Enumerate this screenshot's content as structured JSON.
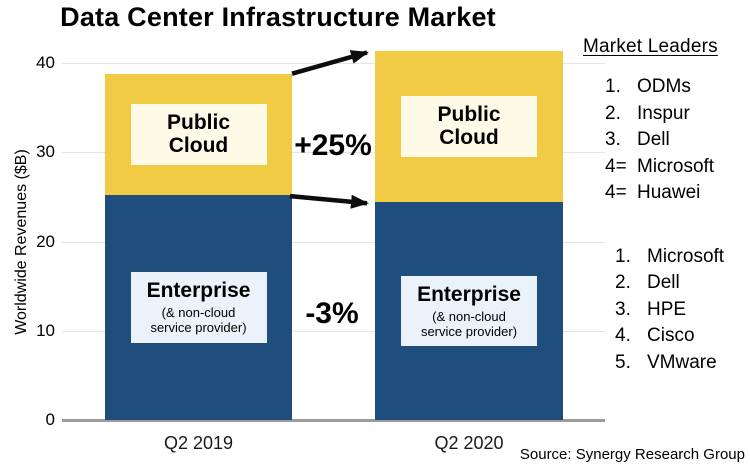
{
  "title": "Data Center Infrastructure Market",
  "chart_data": {
    "type": "bar",
    "stacked": true,
    "title": "Data Center Infrastructure Market",
    "categories": [
      "Q2 2019",
      "Q2 2020"
    ],
    "series": [
      {
        "name": "Enterprise",
        "sublabel": "(& non-cloud service provider)",
        "values": [
          25.2,
          24.4
        ],
        "color": "#1f4e7c",
        "label_bg": "#ebf2fa"
      },
      {
        "name": "Public Cloud",
        "sublabel": "",
        "values": [
          13.6,
          17.0
        ],
        "color": "#f2cb45",
        "label_bg": "#fdfae8"
      }
    ],
    "totals": [
      38.8,
      41.4
    ],
    "xlabel": "",
    "ylabel": "Worldwide Revenues ($B)",
    "ylim": [
      0,
      42
    ],
    "yticks": [
      0,
      10,
      20,
      30,
      40
    ],
    "grid": true,
    "legend_position": "none",
    "annotations": [
      {
        "label": "+25%",
        "applies_to": "Public Cloud",
        "from": "Q2 2019",
        "to": "Q2 2020"
      },
      {
        "label": "-3%",
        "applies_to": "Enterprise",
        "from": "Q2 2019",
        "to": "Q2 2020"
      }
    ]
  },
  "market_leaders": {
    "heading": "Market Leaders",
    "cloud_list": [
      {
        "rank": "1.",
        "name": "ODMs"
      },
      {
        "rank": "2.",
        "name": "Inspur"
      },
      {
        "rank": "3.",
        "name": "Dell"
      },
      {
        "rank": "4=",
        "name": "Microsoft"
      },
      {
        "rank": "4=",
        "name": "Huawei"
      }
    ],
    "enterprise_list": [
      {
        "rank": "1.",
        "name": "Microsoft"
      },
      {
        "rank": "2.",
        "name": "Dell"
      },
      {
        "rank": "3.",
        "name": "HPE"
      },
      {
        "rank": "4.",
        "name": "Cisco"
      },
      {
        "rank": "5.",
        "name": "VMware"
      }
    ]
  },
  "source": "Source: Synergy Research Group",
  "colors": {
    "enterprise": "#1f4e7c",
    "public_cloud": "#f2cb45",
    "gridline": "#e4e4e4",
    "axis_line": "#9c9c9c",
    "arrow": "#0d0d0d",
    "background": "#ffffff"
  }
}
